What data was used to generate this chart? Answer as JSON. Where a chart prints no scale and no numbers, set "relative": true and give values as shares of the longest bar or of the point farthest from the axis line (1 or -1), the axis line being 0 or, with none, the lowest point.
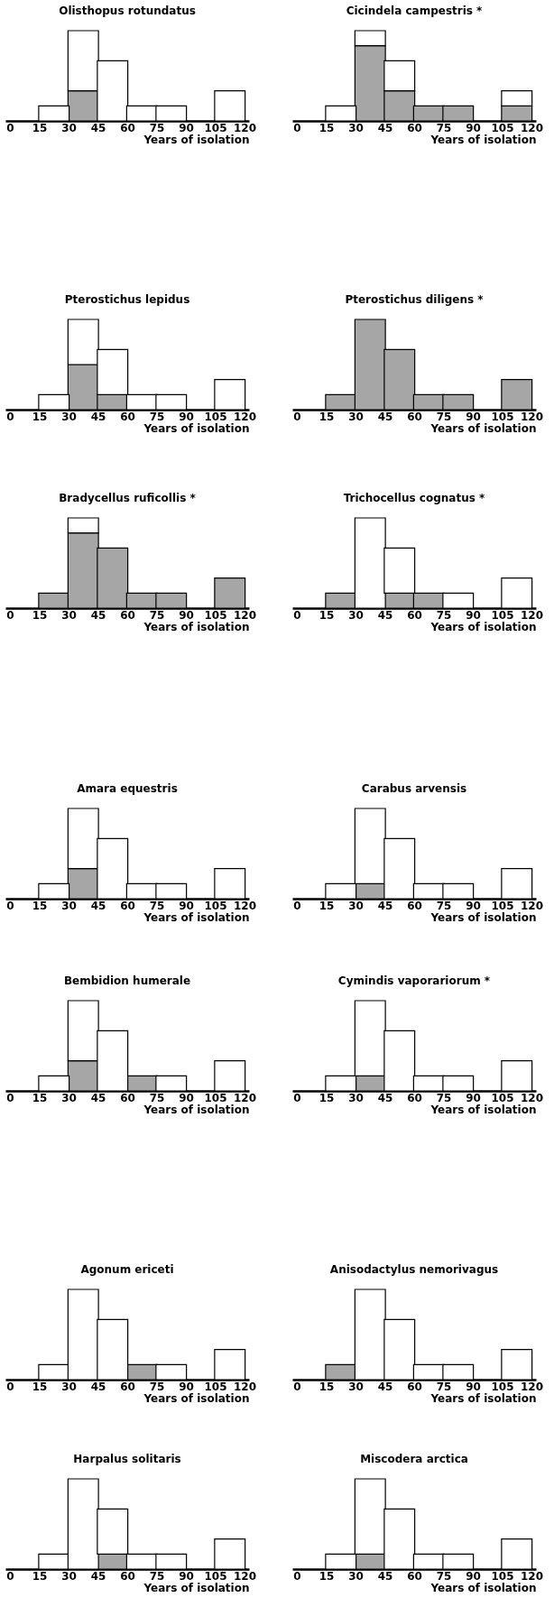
{
  "chart_data": [
    {
      "type": "bar",
      "title": "Olisthopus rotundatus",
      "xlabel": "Years of isolation",
      "x": [
        22.5,
        37.5,
        52.5,
        67.5,
        82.5,
        112.5
      ],
      "xlim": [
        0,
        120
      ],
      "xticks": [
        0,
        15,
        30,
        45,
        60,
        75,
        90,
        105,
        120
      ],
      "stacked": true,
      "relative": true,
      "series": [
        {
          "color": "#a6a6a6",
          "values": [
            null,
            0.333,
            null,
            null,
            null,
            null
          ]
        },
        {
          "color": "#ffffff",
          "values": [
            0.167,
            0.667,
            0.667,
            0.167,
            0.167,
            0.333
          ]
        }
      ]
    },
    {
      "type": "bar",
      "title": "Cicindela campestris *",
      "xlabel": "Years of isolation",
      "x": [
        22.5,
        37.5,
        52.5,
        67.5,
        82.5,
        112.5
      ],
      "xlim": [
        0,
        120
      ],
      "xticks": [
        0,
        15,
        30,
        45,
        60,
        75,
        90,
        105,
        120
      ],
      "stacked": true,
      "relative": true,
      "series": [
        {
          "color": "#a6a6a6",
          "values": [
            null,
            0.833,
            0.333,
            0.167,
            0.167,
            0.167
          ]
        },
        {
          "color": "#ffffff",
          "values": [
            0.167,
            0.167,
            0.333,
            null,
            null,
            0.167
          ]
        }
      ]
    },
    {
      "type": "bar",
      "title": "Pterostichus lepidus",
      "xlabel": "Years of isolation",
      "x": [
        22.5,
        37.5,
        52.5,
        67.5,
        82.5,
        112.5
      ],
      "xlim": [
        0,
        120
      ],
      "xticks": [
        0,
        15,
        30,
        45,
        60,
        75,
        90,
        105,
        120
      ],
      "stacked": true,
      "relative": true,
      "series": [
        {
          "color": "#a6a6a6",
          "values": [
            null,
            0.5,
            0.167,
            null,
            null,
            null
          ]
        },
        {
          "color": "#ffffff",
          "values": [
            0.167,
            0.5,
            0.5,
            0.167,
            0.167,
            0.333
          ]
        }
      ]
    },
    {
      "type": "bar",
      "title": "Pterostichus diligens *",
      "xlabel": "Years of isolation",
      "x": [
        22.5,
        37.5,
        52.5,
        67.5,
        82.5,
        112.5
      ],
      "xlim": [
        0,
        120
      ],
      "xticks": [
        0,
        15,
        30,
        45,
        60,
        75,
        90,
        105,
        120
      ],
      "stacked": true,
      "relative": true,
      "series": [
        {
          "color": "#a6a6a6",
          "values": [
            0.167,
            1,
            0.667,
            0.167,
            0.167,
            0.333
          ]
        }
      ]
    },
    {
      "type": "bar",
      "title": "Bradycellus ruficollis *",
      "xlabel": "Years of isolation",
      "x": [
        22.5,
        37.5,
        52.5,
        67.5,
        82.5,
        112.5
      ],
      "xlim": [
        0,
        120
      ],
      "xticks": [
        0,
        15,
        30,
        45,
        60,
        75,
        90,
        105,
        120
      ],
      "stacked": true,
      "relative": true,
      "series": [
        {
          "color": "#a6a6a6",
          "values": [
            0.167,
            0.833,
            0.667,
            0.167,
            0.167,
            0.333
          ]
        },
        {
          "color": "#ffffff",
          "values": [
            null,
            0.167,
            null,
            null,
            null,
            null
          ]
        }
      ]
    },
    {
      "type": "bar",
      "title": "Trichocellus cognatus *",
      "xlabel": "Years of isolation",
      "x": [
        22.5,
        37.5,
        52.5,
        67.5,
        82.5,
        112.5
      ],
      "xlim": [
        0,
        120
      ],
      "xticks": [
        0,
        15,
        30,
        45,
        60,
        75,
        90,
        105,
        120
      ],
      "stacked": true,
      "relative": true,
      "series": [
        {
          "color": "#a6a6a6",
          "values": [
            0.167,
            null,
            0.167,
            0.167,
            null,
            null
          ]
        },
        {
          "color": "#ffffff",
          "values": [
            null,
            1,
            0.5,
            null,
            0.167,
            0.333
          ]
        }
      ]
    },
    {
      "type": "bar",
      "title": "Amara equestris",
      "xlabel": "Years of isolation",
      "x": [
        22.5,
        37.5,
        52.5,
        67.5,
        82.5,
        112.5
      ],
      "xlim": [
        0,
        120
      ],
      "xticks": [
        0,
        15,
        30,
        45,
        60,
        75,
        90,
        105,
        120
      ],
      "stacked": true,
      "relative": true,
      "series": [
        {
          "color": "#a6a6a6",
          "values": [
            null,
            0.333,
            null,
            null,
            null,
            null
          ]
        },
        {
          "color": "#ffffff",
          "values": [
            0.167,
            0.667,
            0.667,
            0.167,
            0.167,
            0.333
          ]
        }
      ]
    },
    {
      "type": "bar",
      "title": "Carabus arvensis",
      "xlabel": "Years of isolation",
      "x": [
        22.5,
        37.5,
        52.5,
        67.5,
        82.5,
        112.5
      ],
      "xlim": [
        0,
        120
      ],
      "xticks": [
        0,
        15,
        30,
        45,
        60,
        75,
        90,
        105,
        120
      ],
      "stacked": true,
      "relative": true,
      "series": [
        {
          "color": "#a6a6a6",
          "values": [
            null,
            0.167,
            null,
            null,
            null,
            null
          ]
        },
        {
          "color": "#ffffff",
          "values": [
            0.167,
            0.833,
            0.667,
            0.167,
            0.167,
            0.333
          ]
        }
      ]
    },
    {
      "type": "bar",
      "title": "Bembidion humerale",
      "xlabel": "Years of isolation",
      "x": [
        22.5,
        37.5,
        52.5,
        67.5,
        82.5,
        112.5
      ],
      "xlim": [
        0,
        120
      ],
      "xticks": [
        0,
        15,
        30,
        45,
        60,
        75,
        90,
        105,
        120
      ],
      "stacked": true,
      "relative": true,
      "series": [
        {
          "color": "#a6a6a6",
          "values": [
            null,
            0.333,
            null,
            0.167,
            null,
            null
          ]
        },
        {
          "color": "#ffffff",
          "values": [
            0.167,
            0.667,
            0.667,
            null,
            0.167,
            0.333
          ]
        }
      ]
    },
    {
      "type": "bar",
      "title": "Cymindis vaporariorum *",
      "xlabel": "Years of isolation",
      "x": [
        22.5,
        37.5,
        52.5,
        67.5,
        82.5,
        112.5
      ],
      "xlim": [
        0,
        120
      ],
      "xticks": [
        0,
        15,
        30,
        45,
        60,
        75,
        90,
        105,
        120
      ],
      "stacked": true,
      "relative": true,
      "series": [
        {
          "color": "#a6a6a6",
          "values": [
            null,
            0.167,
            null,
            null,
            null,
            null
          ]
        },
        {
          "color": "#ffffff",
          "values": [
            0.167,
            0.833,
            0.667,
            0.167,
            0.167,
            0.333
          ]
        }
      ]
    },
    {
      "type": "bar",
      "title": "Agonum ericeti",
      "xlabel": "Years of isolation",
      "x": [
        22.5,
        37.5,
        52.5,
        67.5,
        82.5,
        112.5
      ],
      "xlim": [
        0,
        120
      ],
      "xticks": [
        0,
        15,
        30,
        45,
        60,
        75,
        90,
        105,
        120
      ],
      "stacked": true,
      "relative": true,
      "series": [
        {
          "color": "#a6a6a6",
          "values": [
            null,
            null,
            null,
            0.167,
            null,
            null
          ]
        },
        {
          "color": "#ffffff",
          "values": [
            0.167,
            1,
            0.667,
            null,
            0.167,
            0.333
          ]
        }
      ]
    },
    {
      "type": "bar",
      "title": "Anisodactylus nemorivagus",
      "xlabel": "Years of isolation",
      "x": [
        22.5,
        37.5,
        52.5,
        67.5,
        82.5,
        112.5
      ],
      "xlim": [
        0,
        120
      ],
      "xticks": [
        0,
        15,
        30,
        45,
        60,
        75,
        90,
        105,
        120
      ],
      "stacked": true,
      "relative": true,
      "series": [
        {
          "color": "#a6a6a6",
          "values": [
            0.167,
            null,
            null,
            null,
            null,
            null
          ]
        },
        {
          "color": "#ffffff",
          "values": [
            null,
            1,
            0.667,
            0.167,
            0.167,
            0.333
          ]
        }
      ]
    },
    {
      "type": "bar",
      "title": "Harpalus solitaris",
      "xlabel": "Years of isolation",
      "x": [
        22.5,
        37.5,
        52.5,
        67.5,
        82.5,
        112.5
      ],
      "xlim": [
        0,
        120
      ],
      "xticks": [
        0,
        15,
        30,
        45,
        60,
        75,
        90,
        105,
        120
      ],
      "stacked": true,
      "relative": true,
      "series": [
        {
          "color": "#a6a6a6",
          "values": [
            null,
            null,
            0.167,
            null,
            null,
            null
          ]
        },
        {
          "color": "#ffffff",
          "values": [
            0.167,
            1,
            0.5,
            0.167,
            0.167,
            0.333
          ]
        }
      ]
    },
    {
      "type": "bar",
      "title": "Miscodera arctica",
      "xlabel": "Years of isolation",
      "x": [
        22.5,
        37.5,
        52.5,
        67.5,
        82.5,
        112.5
      ],
      "xlim": [
        0,
        120
      ],
      "xticks": [
        0,
        15,
        30,
        45,
        60,
        75,
        90,
        105,
        120
      ],
      "stacked": true,
      "relative": true,
      "series": [
        {
          "color": "#a6a6a6",
          "values": [
            null,
            0.167,
            null,
            null,
            null,
            null
          ]
        },
        {
          "color": "#ffffff",
          "values": [
            0.167,
            0.833,
            0.667,
            0.167,
            0.167,
            0.333
          ]
        }
      ]
    }
  ]
}
